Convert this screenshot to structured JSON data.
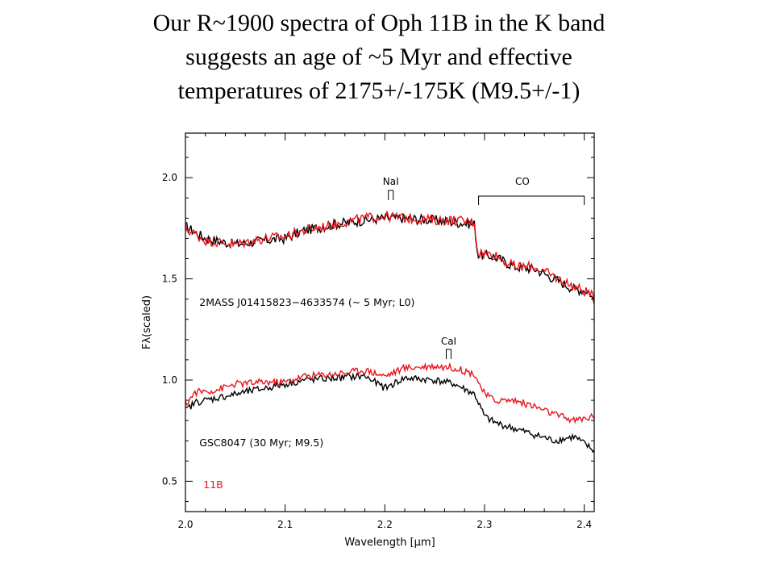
{
  "slide": {
    "title_lines": [
      "Our R~1900 spectra of Oph 11B in the K band",
      "suggests an age of  ~5 Myr and effective",
      "temperatures of 2175+/-175K (M9.5+/-1)"
    ]
  },
  "chart_data": {
    "type": "line",
    "title": "",
    "xlabel": "Wavelength [μm]",
    "ylabel": "Fλ(scaled)",
    "xlim": [
      2.0,
      2.41
    ],
    "ylim": [
      0.35,
      2.22
    ],
    "xticks": [
      2.0,
      2.1,
      2.2,
      2.3,
      2.4
    ],
    "xtick_labels": [
      "2.0",
      "2.1",
      "2.2",
      "2.3",
      "2.4"
    ],
    "yticks": [
      0.5,
      1.0,
      1.5,
      2.0
    ],
    "ytick_labels": [
      "0.5",
      "1.0",
      "1.5",
      "2.0"
    ],
    "grid": false,
    "colors": {
      "reference": "#000000",
      "target": "#e8141b"
    },
    "annotations": {
      "nai": {
        "text": "NaI",
        "x": 2.206
      },
      "cai": {
        "text": "CaI",
        "x": 2.264
      },
      "co": {
        "text": "CO",
        "x_start": 2.294,
        "x_end": 2.4
      },
      "upper_label": "2MASS J01415823−4633574 (~ 5 Myr; L0)",
      "lower_label": "GSC8047 (30 Myr; M9.5)",
      "target_label": "11B"
    },
    "series": [
      {
        "name": "2MASS J01415823−4633574 (~ 5 Myr; L0)",
        "color": "#000000",
        "x": [
          2.0,
          2.02,
          2.05,
          2.08,
          2.1,
          2.12,
          2.15,
          2.18,
          2.2,
          2.22,
          2.25,
          2.27,
          2.29,
          2.293,
          2.31,
          2.33,
          2.35,
          2.37,
          2.39,
          2.405,
          2.41
        ],
        "y": [
          1.76,
          1.7,
          1.67,
          1.69,
          1.7,
          1.74,
          1.77,
          1.79,
          1.8,
          1.8,
          1.79,
          1.78,
          1.77,
          1.62,
          1.61,
          1.56,
          1.55,
          1.5,
          1.45,
          1.44,
          1.38
        ]
      },
      {
        "name": "11B",
        "color": "#e8141b",
        "x": [
          2.0,
          2.02,
          2.05,
          2.08,
          2.1,
          2.12,
          2.15,
          2.18,
          2.2,
          2.22,
          2.25,
          2.27,
          2.29,
          2.293,
          2.31,
          2.33,
          2.35,
          2.37,
          2.39,
          2.405,
          2.41
        ],
        "y": [
          1.75,
          1.69,
          1.67,
          1.7,
          1.71,
          1.74,
          1.77,
          1.8,
          1.81,
          1.8,
          1.79,
          1.79,
          1.78,
          1.63,
          1.62,
          1.56,
          1.56,
          1.51,
          1.46,
          1.43,
          1.4
        ]
      },
      {
        "name": "GSC8047 (30 Myr; M9.5)",
        "color": "#000000",
        "x": [
          2.0,
          2.01,
          2.03,
          2.05,
          2.08,
          2.1,
          2.12,
          2.15,
          2.18,
          2.2,
          2.22,
          2.25,
          2.27,
          2.29,
          2.3,
          2.31,
          2.33,
          2.35,
          2.37,
          2.39,
          2.41
        ],
        "y": [
          0.85,
          0.89,
          0.91,
          0.93,
          0.96,
          0.98,
          1.0,
          1.01,
          1.02,
          0.96,
          1.01,
          1.0,
          0.98,
          0.93,
          0.82,
          0.79,
          0.76,
          0.73,
          0.7,
          0.72,
          0.65
        ]
      },
      {
        "name": "11B",
        "color": "#e8141b",
        "x": [
          2.0,
          2.01,
          2.03,
          2.05,
          2.08,
          2.1,
          2.12,
          2.15,
          2.18,
          2.2,
          2.22,
          2.25,
          2.27,
          2.29,
          2.3,
          2.31,
          2.33,
          2.35,
          2.37,
          2.39,
          2.41
        ],
        "y": [
          0.88,
          0.94,
          0.95,
          0.98,
          0.99,
          0.99,
          1.02,
          1.03,
          1.05,
          1.02,
          1.06,
          1.07,
          1.06,
          1.03,
          0.93,
          0.9,
          0.9,
          0.87,
          0.83,
          0.8,
          0.82
        ]
      }
    ]
  }
}
